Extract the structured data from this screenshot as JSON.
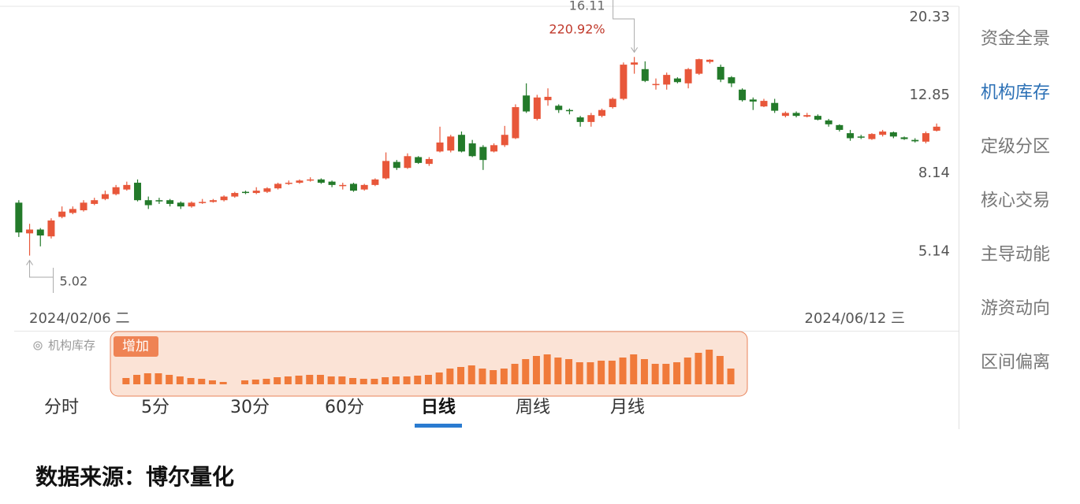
{
  "chart_data": [
    {
      "type": "candlestick",
      "log_scale": true,
      "ylim": [
        3.71,
        21.49
      ],
      "yticks": [
        20.33,
        12.85,
        8.14,
        5.14
      ],
      "x_labels": [
        "2024/02/06 二",
        "2024/06/12 三"
      ],
      "up_color": "#e8573a",
      "down_color": "#237a2a",
      "open": [
        6.85,
        5.72,
        5.85,
        5.62,
        6.3,
        6.45,
        6.55,
        6.8,
        7.0,
        7.2,
        7.4,
        7.7,
        6.95,
        6.95,
        6.95,
        6.85,
        6.7,
        6.85,
        6.88,
        6.95,
        7.1,
        7.3,
        7.25,
        7.3,
        7.45,
        7.65,
        7.7,
        7.8,
        7.85,
        7.75,
        7.55,
        7.65,
        7.4,
        7.6,
        7.9,
        8.7,
        8.4,
        8.95,
        8.6,
        9.25,
        9.3,
        10.2,
        9.7,
        9.5,
        9.25,
        9.6,
        10.0,
        12.85,
        11.2,
        12.5,
        12.1,
        11.8,
        11.3,
        11.0,
        11.4,
        12.0,
        12.6,
        15.4,
        15.0,
        13.7,
        13.7,
        14.2,
        13.8,
        14.6,
        15.65,
        15.2,
        14.3,
        13.3,
        12.55,
        12.05,
        12.3,
        11.4,
        11.6,
        11.35,
        11.4,
        11.1,
        10.8,
        10.3,
        10.1,
        9.95,
        10.2,
        10.35,
        10.05,
        9.9,
        9.8,
        10.45
      ],
      "high": [
        6.95,
        6.05,
        5.9,
        6.25,
        6.7,
        6.7,
        6.95,
        7.05,
        7.35,
        7.6,
        7.75,
        7.85,
        7.1,
        7.05,
        7.0,
        6.9,
        6.9,
        7.0,
        7.0,
        7.15,
        7.3,
        7.35,
        7.5,
        7.5,
        7.7,
        7.8,
        7.85,
        7.95,
        7.9,
        7.8,
        7.7,
        7.7,
        7.65,
        7.9,
        9.2,
        8.8,
        9.15,
        9.0,
        8.95,
        10.7,
        10.2,
        10.4,
        9.9,
        9.6,
        9.7,
        10.75,
        12.2,
        13.8,
        12.9,
        13.4,
        12.2,
        11.9,
        11.4,
        11.6,
        11.9,
        12.7,
        15.6,
        16.11,
        15.7,
        14.2,
        14.7,
        14.3,
        15.1,
        15.95,
        15.9,
        15.4,
        14.4,
        13.4,
        12.7,
        12.6,
        12.6,
        11.7,
        11.7,
        11.6,
        11.5,
        11.2,
        10.85,
        10.5,
        10.2,
        10.3,
        10.5,
        10.4,
        10.1,
        10.0,
        10.4,
        10.9
      ],
      "low": [
        5.6,
        5.02,
        5.3,
        5.55,
        6.25,
        6.4,
        6.5,
        6.75,
        6.95,
        7.15,
        7.35,
        6.9,
        6.6,
        6.8,
        6.7,
        6.6,
        6.65,
        6.8,
        6.85,
        6.9,
        7.05,
        7.2,
        7.2,
        7.25,
        7.4,
        7.6,
        7.65,
        7.75,
        7.65,
        7.5,
        7.4,
        7.3,
        7.35,
        7.55,
        7.85,
        8.3,
        8.35,
        8.6,
        8.5,
        9.2,
        9.2,
        9.2,
        8.95,
        8.3,
        9.2,
        9.5,
        9.95,
        11.6,
        11.1,
        12.1,
        11.6,
        11.5,
        10.7,
        10.7,
        11.3,
        11.9,
        12.5,
        14.6,
        13.9,
        13.3,
        13.3,
        13.8,
        13.4,
        14.5,
        15.5,
        13.9,
        13.5,
        12.4,
        11.8,
        12.0,
        11.6,
        11.3,
        11.3,
        11.3,
        11.1,
        10.7,
        10.4,
        9.85,
        9.95,
        9.9,
        10.1,
        10.0,
        9.9,
        9.75,
        9.7,
        10.4
      ],
      "close": [
        5.75,
        5.85,
        5.65,
        6.17,
        6.5,
        6.6,
        6.85,
        6.95,
        7.2,
        7.5,
        7.6,
        6.95,
        6.75,
        6.9,
        6.8,
        6.7,
        6.85,
        6.88,
        6.95,
        7.1,
        7.25,
        7.25,
        7.35,
        7.45,
        7.65,
        7.7,
        7.8,
        7.85,
        7.7,
        7.6,
        7.6,
        7.35,
        7.6,
        7.85,
        8.75,
        8.4,
        9.0,
        8.65,
        8.85,
        9.75,
        10.1,
        9.25,
        9.0,
        8.8,
        9.6,
        10.2,
        12.0,
        11.7,
        12.7,
        12.75,
        11.8,
        11.75,
        11.0,
        11.45,
        11.8,
        12.6,
        15.4,
        15.6,
        14.0,
        13.75,
        14.5,
        13.9,
        15.0,
        15.9,
        15.85,
        14.1,
        13.8,
        12.5,
        12.4,
        12.45,
        11.75,
        11.6,
        11.4,
        11.45,
        11.15,
        10.85,
        10.5,
        10.0,
        10.05,
        10.25,
        10.4,
        10.1,
        9.95,
        9.82,
        10.3,
        10.7
      ],
      "high_label": 16.11,
      "change_label": "220.92%",
      "low_label": 5.02
    },
    {
      "type": "bar",
      "label": "机构库存",
      "tag": "增加",
      "color": "#f07a3a",
      "ylim": [
        0,
        52
      ],
      "values": [
        8,
        12,
        14,
        14,
        12,
        10,
        8,
        7,
        5,
        3,
        null,
        5,
        6,
        7,
        9,
        10,
        11,
        12,
        12,
        10,
        10,
        8,
        7,
        7,
        9,
        10,
        10,
        11,
        12,
        15,
        20,
        22,
        24,
        20,
        18,
        20,
        26,
        32,
        36,
        38,
        34,
        32,
        28,
        28,
        30,
        30,
        34,
        38,
        32,
        26,
        26,
        28,
        34,
        40,
        44,
        36,
        20
      ]
    }
  ],
  "tabs": {
    "items": [
      "分时",
      "5分",
      "30分",
      "60分",
      "日线",
      "周线",
      "月线"
    ],
    "active": 4
  },
  "sidebar": {
    "items": [
      "资金全景",
      "机构库存",
      "定级分区",
      "核心交易",
      "主导动能",
      "游资动向",
      "区间偏离"
    ],
    "active": 1
  },
  "footer": "数据来源：博尔量化"
}
